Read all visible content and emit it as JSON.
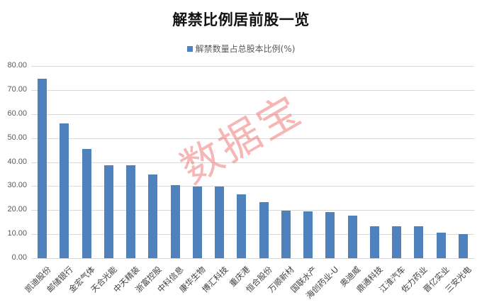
{
  "chart_data": {
    "type": "bar",
    "title": "解禁比例居前股一览",
    "legend": [
      "解禁数量占总股本比例(%)"
    ],
    "legend_position": "top",
    "xlabel": "",
    "ylabel": "",
    "ylim": [
      0,
      80
    ],
    "yticks": [
      "0.00",
      "10.00",
      "20.00",
      "30.00",
      "40.00",
      "50.00",
      "60.00",
      "70.00",
      "80.00"
    ],
    "grid": true,
    "bar_color": "#4f81bd",
    "categories": [
      "凯迪股份",
      "邮储银行",
      "金宏气体",
      "天合光能",
      "中天精装",
      "浙富控股",
      "中科信息",
      "康华生物",
      "博汇科技",
      "重庆港",
      "恒合股份",
      "万顺新材",
      "国联水产",
      "海创药业-U",
      "奥迪威",
      "鼎通科技",
      "江淮汽车",
      "佐力药业",
      "晋亿实业",
      "三安光电"
    ],
    "series": [
      {
        "name": "解禁数量占总股本比例(%)",
        "values": [
          74.8,
          56.1,
          45.4,
          38.6,
          38.6,
          34.8,
          30.4,
          29.8,
          29.8,
          26.5,
          23.3,
          19.8,
          19.5,
          19.2,
          17.7,
          13.3,
          13.3,
          13.3,
          10.7,
          10.1
        ]
      }
    ]
  },
  "watermark": "数据宝"
}
